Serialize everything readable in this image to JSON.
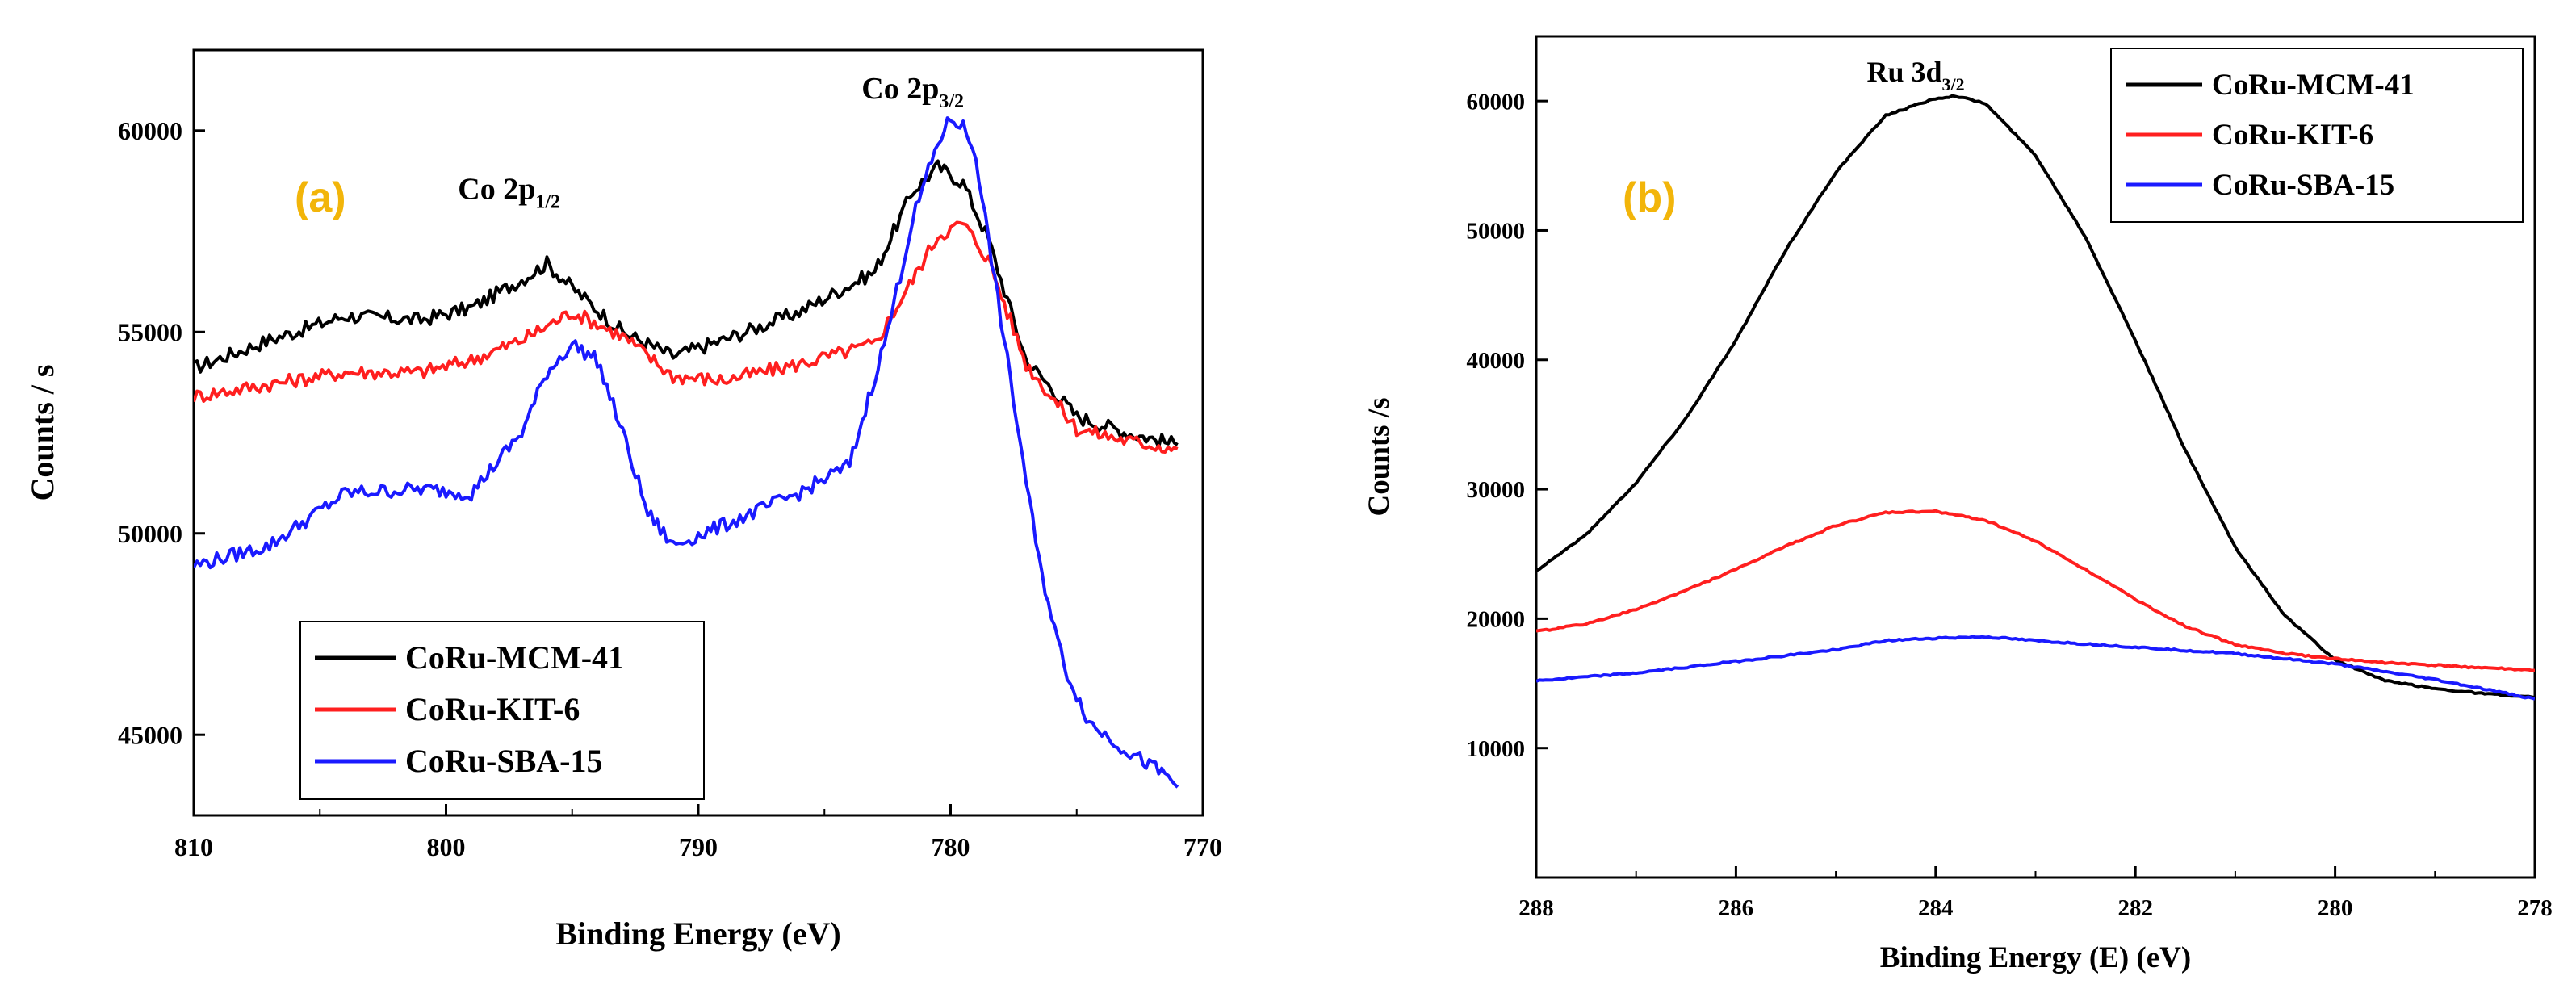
{
  "chart_data": [
    {
      "type": "line",
      "panel_label": "(a)",
      "title": "",
      "xlabel": "Binding Energy (eV)",
      "ylabel": "Counts / s",
      "xlim": [
        810,
        770
      ],
      "ylim": [
        43000,
        62000
      ],
      "xticks": [
        810,
        800,
        790,
        780,
        770
      ],
      "yticks": [
        45000,
        50000,
        55000,
        60000
      ],
      "grid": false,
      "legend_position": "bottom-left",
      "annotations": [
        {
          "id": "co2p12",
          "base": "Co 2p",
          "sub": "1/2",
          "x": 797.5,
          "y": 58300
        },
        {
          "id": "co2p32",
          "base": "Co 2p",
          "sub": "3/2",
          "x": 781.5,
          "y": 60800
        }
      ],
      "series": [
        {
          "name": "CoRu-MCM-41",
          "color": "#000000",
          "x": [
            810,
            807,
            804,
            801,
            799,
            797,
            796,
            795,
            793,
            791,
            789,
            786,
            783,
            781.5,
            780.5,
            779.5,
            778.5,
            777,
            775,
            773,
            771
          ],
          "y": [
            54100,
            54800,
            55400,
            55300,
            55600,
            56300,
            56700,
            56100,
            55000,
            54400,
            54800,
            55500,
            56500,
            58500,
            59100,
            58700,
            57300,
            54300,
            52900,
            52500,
            52200
          ]
        },
        {
          "name": "CoRu-KIT-6",
          "color": "#ff1f1f",
          "x": [
            810,
            807,
            804,
            801,
            799,
            797,
            795,
            793,
            791,
            789,
            786,
            783,
            781.5,
            780.5,
            779.5,
            778.5,
            777,
            775,
            773,
            771
          ],
          "y": [
            53400,
            53700,
            54000,
            54000,
            54300,
            54800,
            55500,
            54900,
            53900,
            53800,
            54200,
            54700,
            56300,
            57400,
            57700,
            56800,
            54200,
            52600,
            52300,
            52100
          ]
        },
        {
          "name": "CoRu-SBA-15",
          "color": "#1a1aff",
          "x": [
            810,
            807,
            804,
            801,
            799,
            797,
            796,
            795,
            794,
            793,
            792,
            791,
            789,
            786,
            784,
            782.5,
            781.5,
            780.5,
            780,
            779.5,
            779,
            778.5,
            777.5,
            776.5,
            775.5,
            774.5,
            773,
            771.5,
            771
          ],
          "y": [
            49200,
            49700,
            51000,
            51100,
            51000,
            52500,
            54000,
            54700,
            54300,
            52500,
            50500,
            49700,
            50200,
            51000,
            51700,
            55000,
            57800,
            59700,
            60300,
            60100,
            59400,
            57300,
            53300,
            49300,
            46700,
            45300,
            44600,
            44000,
            43700
          ]
        }
      ]
    },
    {
      "type": "line",
      "panel_label": "(b)",
      "title": "",
      "xlabel": "Binding Energy (E) (eV)",
      "ylabel": "Counts /s",
      "xlim": [
        288,
        278
      ],
      "ylim": [
        0,
        65000
      ],
      "xticks": [
        288,
        286,
        284,
        282,
        280,
        278
      ],
      "yticks": [
        10000,
        20000,
        30000,
        40000,
        50000,
        60000
      ],
      "grid": false,
      "legend_position": "top-right",
      "annotations": [
        {
          "id": "ru3d32",
          "base": "Ru 3d",
          "sub": "3/2",
          "x": 284.2,
          "y": 61500
        }
      ],
      "series": [
        {
          "name": "CoRu-MCM-41",
          "color": "#000000",
          "x": [
            288,
            287.5,
            287,
            286.5,
            286,
            285.5,
            285,
            284.5,
            284,
            283.8,
            283.5,
            283,
            282.5,
            282,
            281.5,
            281,
            280.5,
            280,
            279.5,
            279,
            278.5,
            278
          ],
          "y": [
            23700,
            26500,
            30500,
            35500,
            41500,
            48500,
            54500,
            58900,
            60200,
            60400,
            59800,
            55800,
            49500,
            41500,
            33000,
            25500,
            20200,
            16800,
            15200,
            14600,
            14200,
            13900
          ]
        },
        {
          "name": "CoRu-KIT-6",
          "color": "#ff1f1f",
          "x": [
            288,
            287.5,
            287,
            286.5,
            286,
            285.5,
            285,
            284.5,
            284,
            283.5,
            283,
            282.5,
            282,
            281.5,
            281,
            280.5,
            280,
            279.5,
            279,
            278.5,
            278
          ],
          "y": [
            19000,
            19600,
            20700,
            22200,
            23800,
            25600,
            27200,
            28200,
            28300,
            27600,
            26000,
            23800,
            21500,
            19400,
            18000,
            17300,
            16900,
            16600,
            16400,
            16200,
            16000
          ]
        },
        {
          "name": "CoRu-SBA-15",
          "color": "#1a1aff",
          "x": [
            288,
            287,
            286,
            285,
            284.5,
            284,
            283.5,
            283,
            282,
            281,
            280,
            279,
            278
          ],
          "y": [
            15200,
            15800,
            16700,
            17600,
            18300,
            18500,
            18600,
            18300,
            17800,
            17300,
            16500,
            15300,
            13800
          ]
        }
      ]
    }
  ]
}
